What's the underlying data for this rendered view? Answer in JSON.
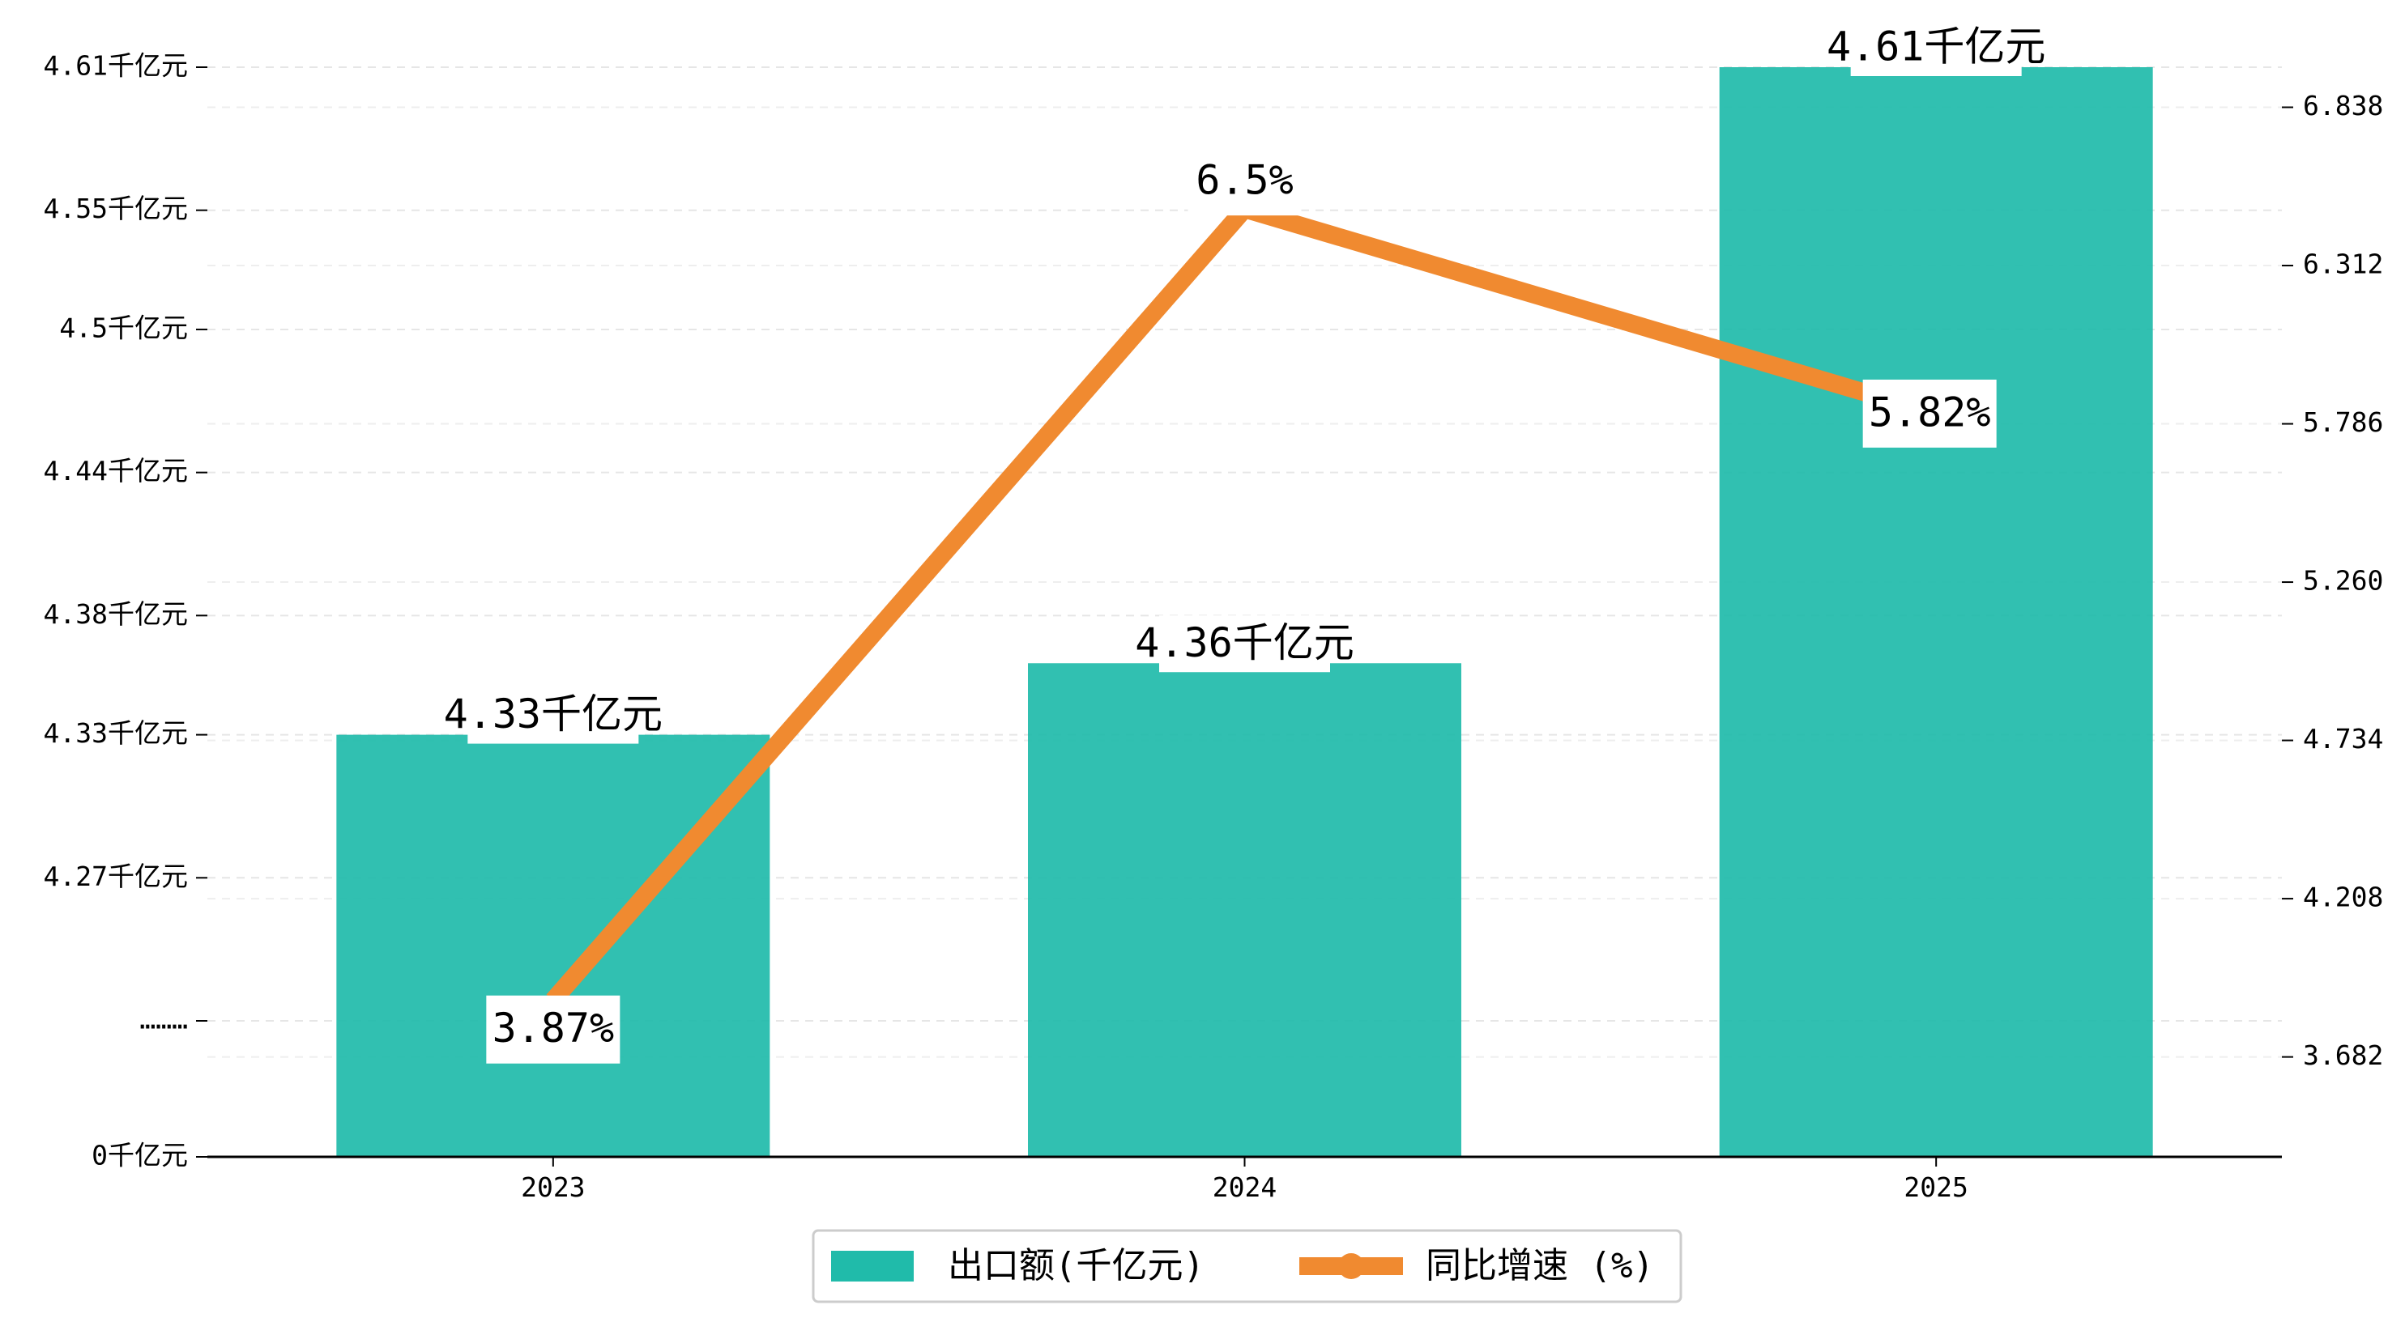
{
  "chart_data": {
    "type": "bar",
    "categories": [
      "2023",
      "2024",
      "2025"
    ],
    "series": [
      {
        "name": "出口额(千亿元)",
        "type": "bar",
        "axis": "left",
        "values": [
          4.33,
          4.36,
          4.61
        ],
        "labels": [
          "4.33千亿元",
          "4.36千亿元",
          "4.61千亿元"
        ],
        "color": "#20BBAA"
      },
      {
        "name": "同比增速 (%)",
        "type": "line",
        "axis": "right",
        "values": [
          3.87,
          6.5,
          5.82
        ],
        "labels": [
          "3.87%",
          "6.5%",
          "5.82%"
        ],
        "color": "#F08A30"
      }
    ],
    "y_left": {
      "tick_labels": [
        "0千亿元",
        "………",
        "4.27千亿元",
        "4.33千亿元",
        "4.38千亿元",
        "4.44千亿元",
        "4.5千亿元",
        "4.55千亿元",
        "4.61千亿元"
      ],
      "break_value": 4.21,
      "break_range": [
        4.21,
        4.61
      ]
    },
    "y_right": {
      "ticks": [
        3.682,
        4.208,
        4.734,
        5.26,
        5.786,
        6.312,
        6.838
      ],
      "tick_labels": [
        "3.682",
        "4.208",
        "4.734",
        "5.260",
        "5.786",
        "6.312",
        "6.838"
      ],
      "range": [
        3.35,
        7.06
      ]
    },
    "grid": "horizontal-dashed",
    "legend_position": "bottom-center"
  }
}
